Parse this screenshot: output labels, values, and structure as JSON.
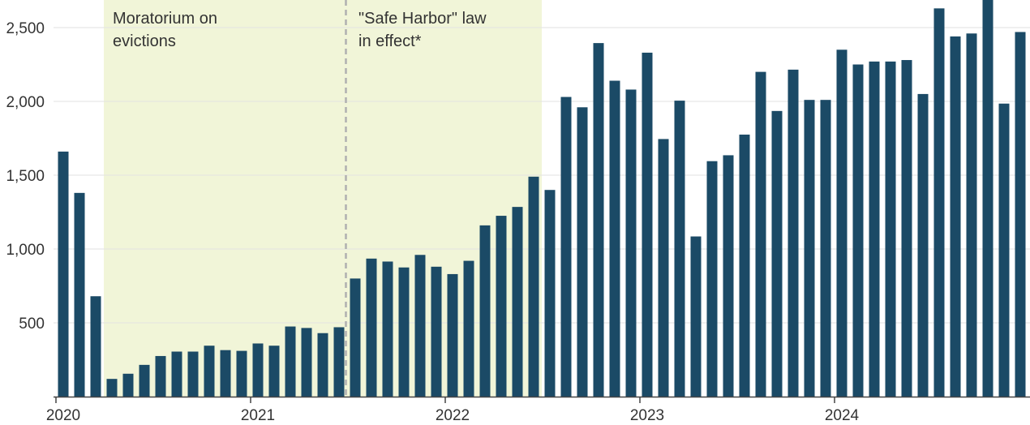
{
  "chart_data": {
    "type": "bar",
    "title": "",
    "xlabel": "",
    "ylabel": "",
    "ylim": [
      0,
      2650
    ],
    "yticks": [
      500,
      1000,
      1500,
      2000,
      2500
    ],
    "ytick_labels": [
      "500",
      "1,000",
      "1,500",
      "2,000",
      "2,500"
    ],
    "grid": true,
    "year_labels": [
      "2020",
      "2021",
      "2022",
      "2023",
      "2024"
    ],
    "colors": {
      "bar": "#1b4a66",
      "shade": "#f1f5d8",
      "grid": "#e2e2e2",
      "axis": "#444444",
      "divider": "#b0b0b0"
    },
    "annotations": [
      {
        "lines": [
          "Moratorium on",
          "evictions"
        ]
      },
      {
        "lines": [
          "\"Safe Harbor\" law",
          "in effect*"
        ]
      }
    ],
    "shaded_periods": [
      {
        "start": "2020-04",
        "end": "2021-06"
      },
      {
        "start": "2021-07",
        "end": "2022-06"
      }
    ],
    "categories": [
      "2020-01",
      "2020-02",
      "2020-03",
      "2020-04",
      "2020-05",
      "2020-06",
      "2020-07",
      "2020-08",
      "2020-09",
      "2020-10",
      "2020-11",
      "2020-12",
      "2021-01",
      "2021-02",
      "2021-03",
      "2021-04",
      "2021-05",
      "2021-06",
      "2021-07",
      "2021-08",
      "2021-09",
      "2021-10",
      "2021-11",
      "2021-12",
      "2022-01",
      "2022-02",
      "2022-03",
      "2022-04",
      "2022-05",
      "2022-06",
      "2022-07",
      "2022-08",
      "2022-09",
      "2022-10",
      "2022-11",
      "2022-12",
      "2023-01",
      "2023-02",
      "2023-03",
      "2023-04",
      "2023-05",
      "2023-06",
      "2023-07",
      "2023-08",
      "2023-09",
      "2023-10",
      "2023-11",
      "2023-12",
      "2024-01",
      "2024-02",
      "2024-03",
      "2024-04",
      "2024-05",
      "2024-06",
      "2024-07",
      "2024-08",
      "2024-09",
      "2024-10",
      "2024-11",
      "2024-12"
    ],
    "values": [
      1660,
      1380,
      680,
      120,
      155,
      215,
      275,
      305,
      305,
      345,
      315,
      310,
      360,
      345,
      475,
      465,
      430,
      470,
      800,
      935,
      915,
      875,
      960,
      880,
      830,
      920,
      1160,
      1225,
      1285,
      1490,
      1400,
      2030,
      1960,
      2395,
      2140,
      2080,
      2330,
      1745,
      2005,
      1085,
      1595,
      1635,
      1775,
      2200,
      1935,
      2215,
      2010,
      2010,
      2350,
      2250,
      2270,
      2270,
      2280,
      2050,
      2630,
      2440,
      2460,
      2700,
      1985,
      2470
    ]
  }
}
